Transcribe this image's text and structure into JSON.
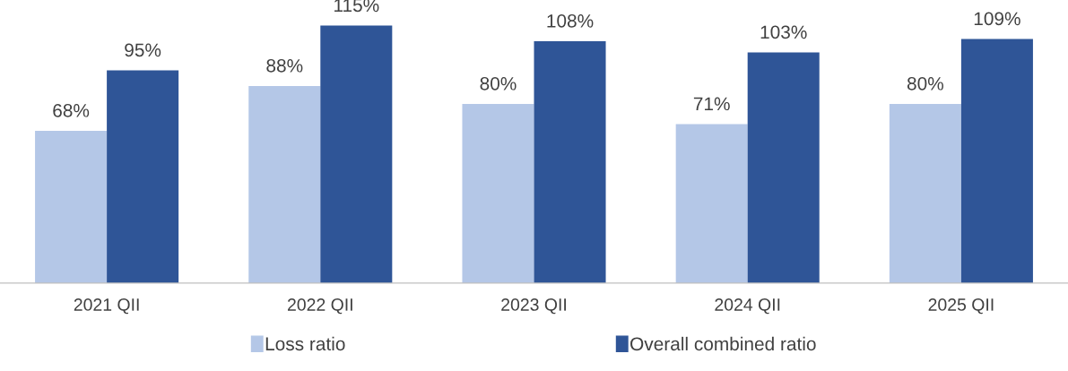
{
  "chart_data": {
    "type": "bar",
    "categories": [
      "2021 QII",
      "2022 QII",
      "2023 QII",
      "2024 QII",
      "2025 QII"
    ],
    "series": [
      {
        "name": "Loss ratio",
        "color": "#b4c7e7",
        "values": [
          68,
          88,
          80,
          71,
          80
        ],
        "value_labels": [
          "68%",
          "88%",
          "80%",
          "71%",
          "80%"
        ]
      },
      {
        "name": "Overall combined ratio",
        "color": "#2f5597",
        "values": [
          95,
          115,
          108,
          103,
          109
        ],
        "value_labels": [
          "95%",
          "115%",
          "108%",
          "103%",
          "109%"
        ]
      }
    ],
    "tick_labels": "x",
    "grid": false,
    "legend": "bottom"
  }
}
